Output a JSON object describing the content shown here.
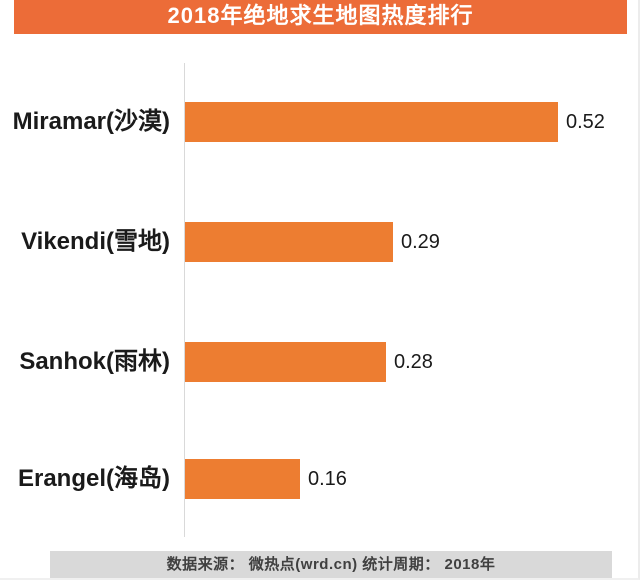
{
  "title": "2018年绝地求生地图热度排行",
  "footer": {
    "text": "数据来源： 微热点(wrd.cn) 统计周期： 2018年"
  },
  "colors": {
    "banner": "#EC6C38",
    "bar": "#ED7D31",
    "footer_bg": "#D9D9D9",
    "footer_text": "#404040",
    "axis_line": "#D9D9D9",
    "label_text": "#1A1A1A"
  },
  "chart_data": {
    "type": "bar",
    "orientation": "horizontal",
    "title": "2018年绝地求生地图热度排行",
    "categories": [
      "Miramar(沙漠)",
      "Vikendi(雪地)",
      "Sanhok(雨林)",
      "Erangel(海岛)"
    ],
    "values": [
      0.52,
      0.29,
      0.28,
      0.16
    ],
    "xlabel": "",
    "ylabel": "",
    "xlim": [
      0,
      0.6
    ],
    "grid": false,
    "legend": false,
    "data_labels": true,
    "source_note": "数据来源： 微热点(wrd.cn) 统计周期： 2018年"
  }
}
